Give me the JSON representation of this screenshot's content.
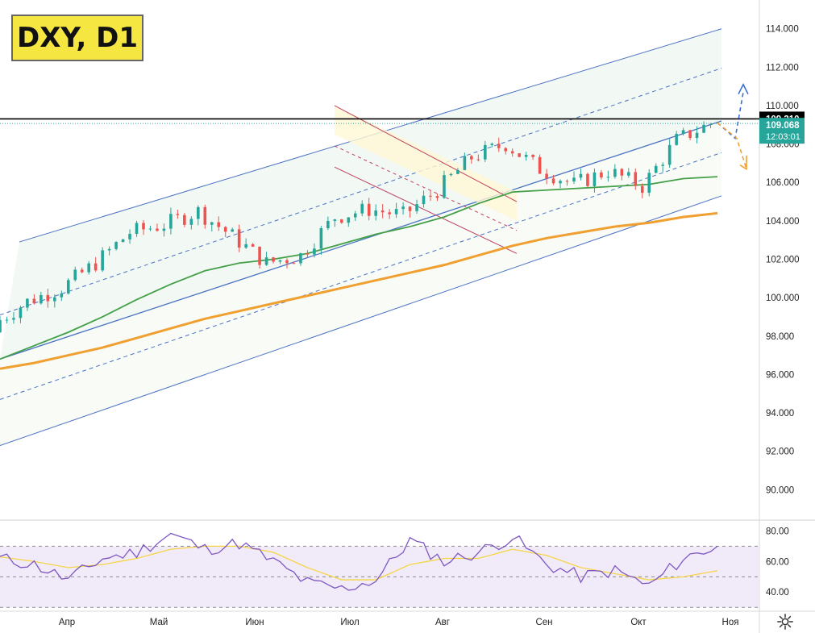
{
  "header": {
    "title": "DXY, D1"
  },
  "price_axis": {
    "ticks": [
      "114.000",
      "112.000",
      "110.000",
      "108.000",
      "106.000",
      "104.000",
      "102.000",
      "100.000",
      "98.000",
      "96.000",
      "94.000",
      "92.000",
      "90.000"
    ],
    "resistance_label": "109.310",
    "current_price_label": "109.068",
    "countdown_label": "12:03:01"
  },
  "rsi_axis": {
    "ticks": [
      "80.00",
      "60.00",
      "40.00"
    ]
  },
  "time_axis": {
    "labels": [
      "Апр",
      "Май",
      "Июн",
      "Июл",
      "Авг",
      "Сен",
      "Окт",
      "Ноя"
    ]
  },
  "colors": {
    "up": "#26a69a",
    "down": "#ef5350",
    "ema_fast": "#43a047",
    "ema_slow": "#f0a030",
    "channel": "#4a72c4",
    "resistance": "#000000",
    "rsi": "#7e57c2",
    "rsi_signal": "#f5d547",
    "title_bg": "#f5e642",
    "current_price_bg": "#26a69a"
  },
  "chart_data": [
    {
      "type": "candlestick",
      "title": "DXY, D1",
      "x": [
        "Apr-01",
        "Apr-08",
        "Apr-15",
        "Apr-22",
        "Apr-29",
        "May-06",
        "May-13",
        "May-20",
        "May-27",
        "Jun-03",
        "Jun-10",
        "Jun-17",
        "Jun-24",
        "Jul-01",
        "Jul-08",
        "Jul-15",
        "Jul-22",
        "Jul-29",
        "Aug-05",
        "Aug-12",
        "Aug-19",
        "Aug-22"
      ],
      "close": [
        98.6,
        99.8,
        100.5,
        101.8,
        103.4,
        103.8,
        104.5,
        103.2,
        101.8,
        102.2,
        104.2,
        104.6,
        104.3,
        105.6,
        107.3,
        108.0,
        106.7,
        105.9,
        106.6,
        105.8,
        108.2,
        109.07
      ],
      "ema_fast": [
        96.8,
        97.5,
        98.2,
        99.0,
        99.9,
        100.7,
        101.4,
        101.8,
        102.0,
        102.3,
        102.8,
        103.3,
        103.7,
        104.2,
        104.9,
        105.5,
        105.6,
        105.7,
        105.8,
        105.9,
        106.2,
        106.3
      ],
      "ema_slow": [
        96.3,
        96.6,
        97.0,
        97.4,
        97.9,
        98.4,
        98.9,
        99.3,
        99.7,
        100.1,
        100.5,
        100.9,
        101.3,
        101.7,
        102.2,
        102.7,
        103.1,
        103.4,
        103.7,
        103.9,
        104.2,
        104.4
      ],
      "resistance": 109.31,
      "current_price": 109.068,
      "ylim": [
        88.5,
        115.5
      ]
    },
    {
      "type": "line",
      "title": "RSI",
      "x": [
        "Apr-01",
        "Apr-08",
        "Apr-15",
        "Apr-22",
        "Apr-29",
        "May-06",
        "May-13",
        "May-20",
        "May-27",
        "Jun-03",
        "Jun-10",
        "Jun-17",
        "Jun-24",
        "Jul-01",
        "Jul-08",
        "Jul-15",
        "Jul-22",
        "Jul-29",
        "Aug-05",
        "Aug-12",
        "Aug-19",
        "Aug-22"
      ],
      "series": [
        {
          "values": [
            62,
            58,
            48,
            62,
            66,
            78,
            68,
            72,
            60,
            46,
            42,
            48,
            74,
            60,
            66,
            76,
            58,
            50,
            54,
            44,
            62,
            70
          ]
        },
        {
          "values": [
            63,
            60,
            56,
            58,
            62,
            68,
            70,
            70,
            66,
            56,
            48,
            48,
            58,
            62,
            62,
            68,
            64,
            56,
            52,
            48,
            50,
            54
          ]
        }
      ],
      "ylim": [
        28,
        86
      ],
      "levels": [
        70,
        50,
        30
      ]
    }
  ]
}
